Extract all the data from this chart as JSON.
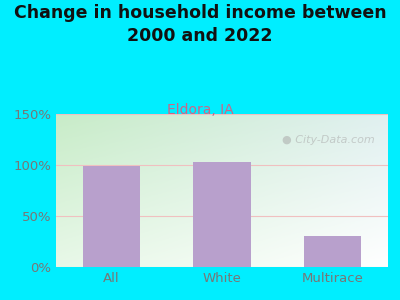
{
  "title": "Change in household income between\n2000 and 2022",
  "subtitle": "Eldora, IA",
  "categories": [
    "All",
    "White",
    "Multirace"
  ],
  "values": [
    99,
    103,
    30
  ],
  "bar_color": "#b8a0cc",
  "title_fontsize": 12.5,
  "subtitle_fontsize": 10,
  "subtitle_color": "#cc6688",
  "tick_label_color": "#777777",
  "background_color": "#00eeff",
  "ylim": [
    0,
    150
  ],
  "yticks": [
    0,
    50,
    100,
    150
  ],
  "ytick_labels": [
    "0%",
    "50%",
    "100%",
    "150%"
  ],
  "watermark": "City-Data.com",
  "gridline_color": "#e0e0e0",
  "plot_bg_color_tl": "#d0efd0",
  "plot_bg_color_tr": "#e8f8f8",
  "plot_bg_color_bl": "#e8f8e8",
  "plot_bg_color_br": "#ffffff"
}
